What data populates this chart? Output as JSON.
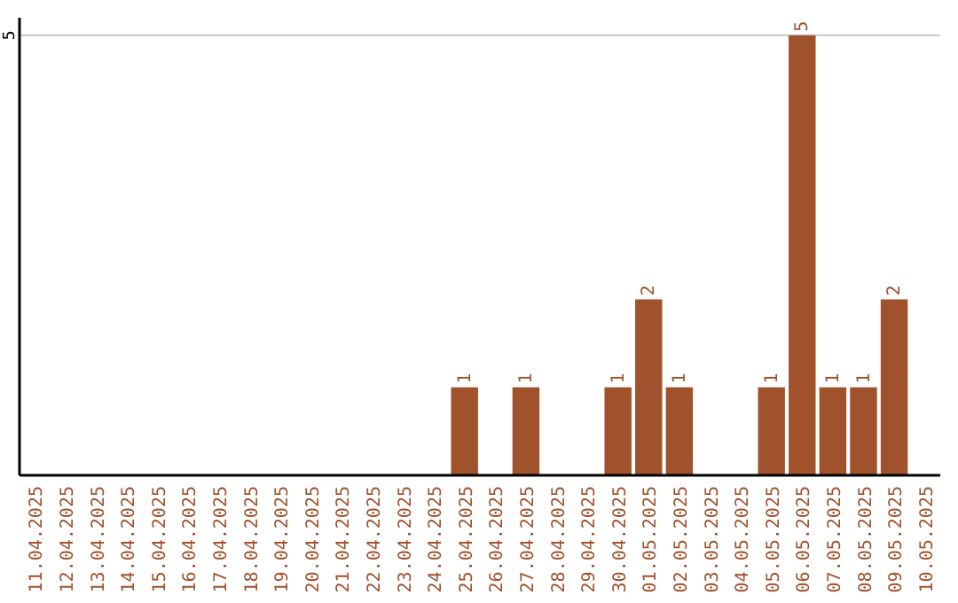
{
  "chart_data": {
    "type": "bar",
    "categories": [
      "11.04.2025",
      "12.04.2025",
      "13.04.2025",
      "14.04.2025",
      "15.04.2025",
      "16.04.2025",
      "17.04.2025",
      "18.04.2025",
      "19.04.2025",
      "20.04.2025",
      "21.04.2025",
      "22.04.2025",
      "23.04.2025",
      "24.04.2025",
      "25.04.2025",
      "26.04.2025",
      "27.04.2025",
      "28.04.2025",
      "29.04.2025",
      "30.04.2025",
      "01.05.2025",
      "02.05.2025",
      "03.05.2025",
      "04.05.2025",
      "05.05.2025",
      "06.05.2025",
      "07.05.2025",
      "08.05.2025",
      "09.05.2025",
      "10.05.2025"
    ],
    "values": [
      null,
      null,
      null,
      null,
      null,
      null,
      null,
      null,
      null,
      null,
      null,
      null,
      null,
      null,
      1,
      null,
      1,
      null,
      null,
      1,
      2,
      1,
      null,
      null,
      1,
      5,
      1,
      1,
      2,
      null
    ],
    "color": "#a0522d",
    "ylim": [
      0,
      5.2
    ],
    "yticks": [
      5
    ],
    "grid": "y",
    "data_labels": true
  }
}
